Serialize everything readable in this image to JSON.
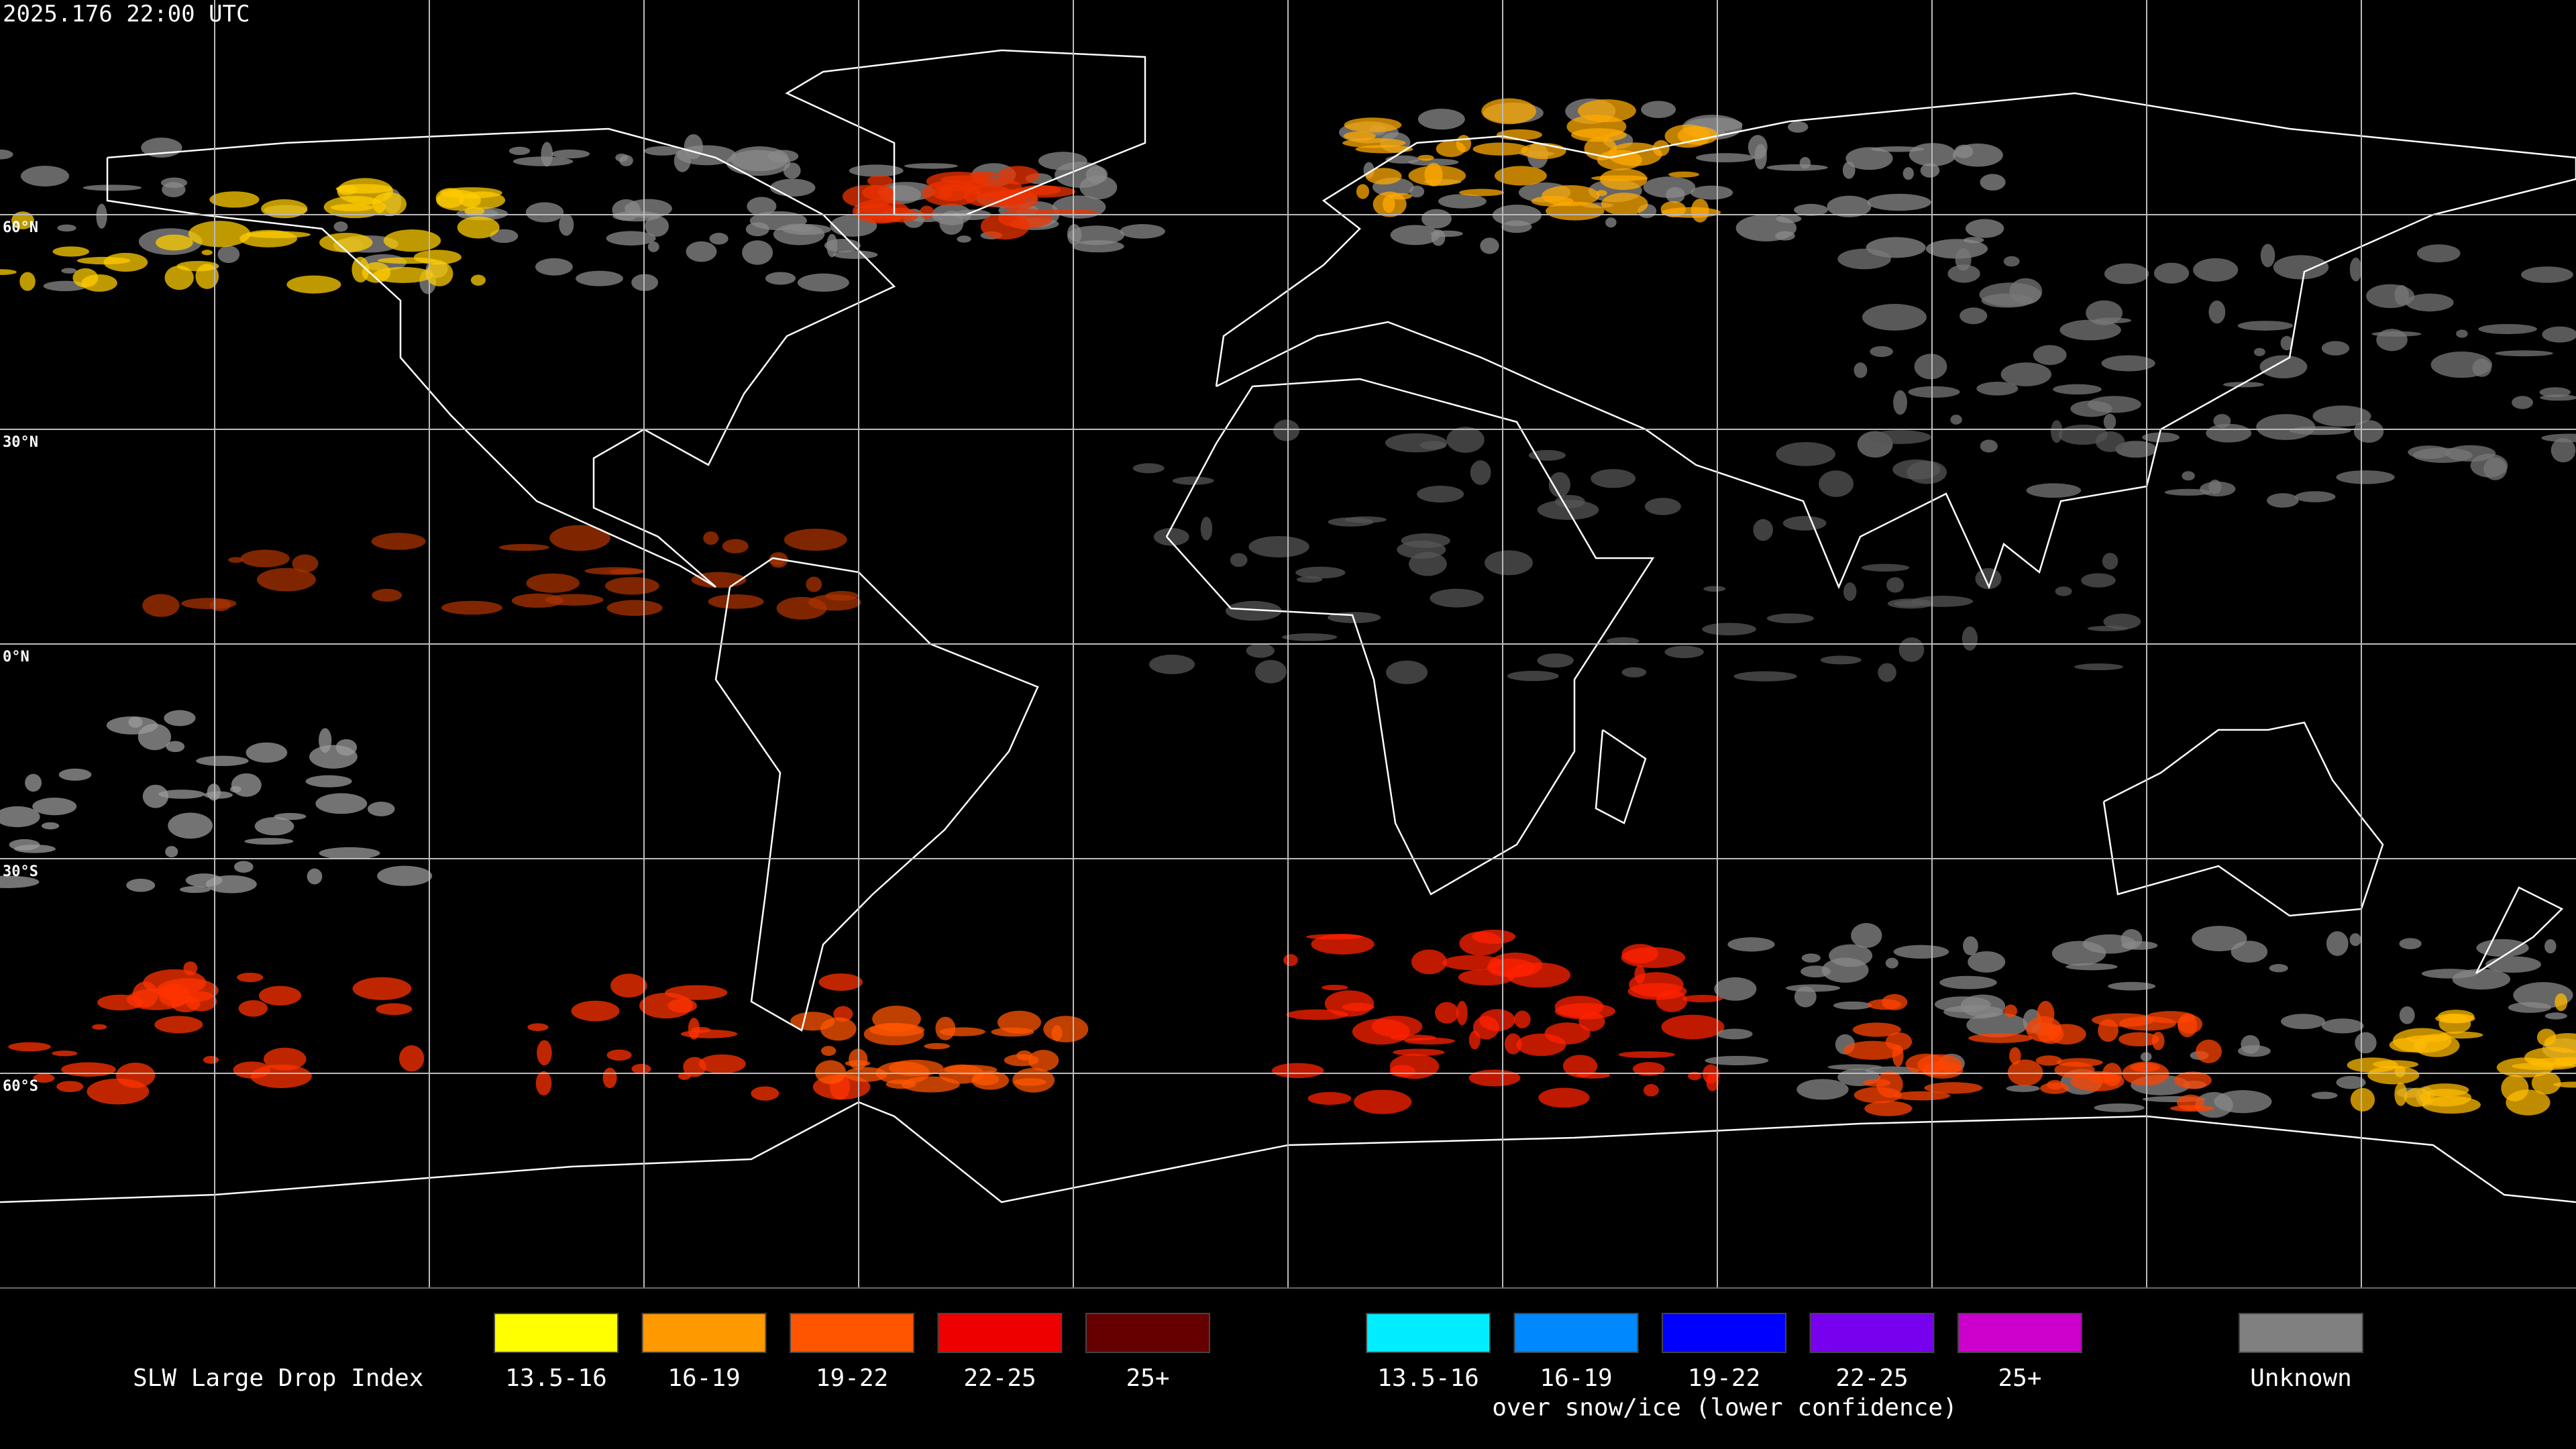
{
  "timestamp": "2025.176 22:00 UTC",
  "lat_labels": [
    "60°N",
    "30°N",
    "0°N",
    "30°S",
    "60°S"
  ],
  "legend": {
    "title": "SLW Large Drop Index",
    "items": [
      {
        "label": "13.5-16",
        "color": "#ffff00"
      },
      {
        "label": "16-19",
        "color": "#ff9900"
      },
      {
        "label": "19-22",
        "color": "#ff5500"
      },
      {
        "label": "22-25",
        "color": "#ee0000"
      },
      {
        "label": "25+",
        "color": "#660000"
      }
    ],
    "snow_items": [
      {
        "label": "13.5-16",
        "color": "#00eeff"
      },
      {
        "label": "16-19",
        "color": "#0088ff"
      },
      {
        "label": "19-22",
        "color": "#0000ff"
      },
      {
        "label": "22-25",
        "color": "#7700ee"
      },
      {
        "label": "25+",
        "color": "#cc00cc"
      }
    ],
    "snow_caption": "over snow/ice (lower confidence)",
    "unknown": {
      "label": "Unknown",
      "color": "#808080"
    }
  }
}
